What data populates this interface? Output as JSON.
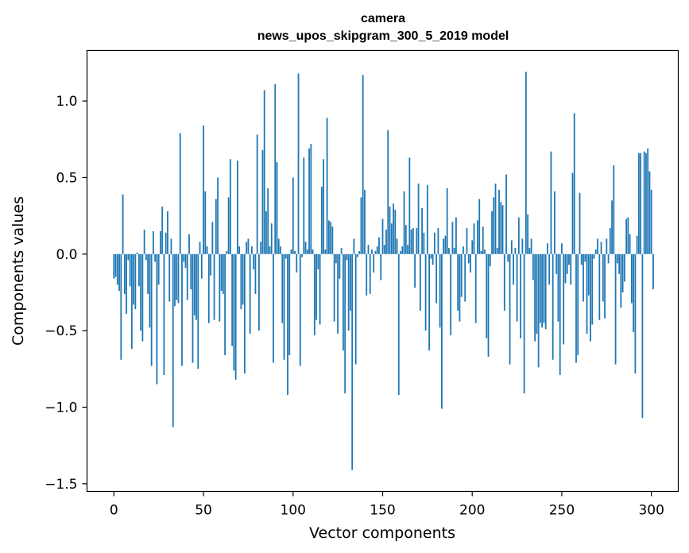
{
  "chart_data": {
    "type": "bar",
    "title": "camera",
    "subtitle": "news_upos_skipgram_300_5_2019 model",
    "xlabel": "Vector components",
    "ylabel": "Components values",
    "xlim": [
      -15,
      315
    ],
    "ylim": [
      -1.55,
      1.33
    ],
    "xticks": [
      0,
      50,
      100,
      150,
      200,
      250,
      300
    ],
    "yticks": [
      -1.5,
      -1.0,
      -0.5,
      0.0,
      0.5,
      1.0
    ],
    "ytick_labels": [
      "−1.5",
      "−1.0",
      "−0.5",
      "0.0",
      "0.5",
      "1.0"
    ],
    "bar_color": "#1f77b4",
    "grid": false,
    "legend": "none",
    "values": [
      -0.16,
      -0.15,
      -0.2,
      -0.24,
      -0.69,
      0.39,
      -0.26,
      -0.39,
      -0.04,
      -0.21,
      -0.62,
      -0.33,
      -0.36,
      0.01,
      -0.21,
      -0.5,
      -0.57,
      0.16,
      -0.04,
      -0.26,
      -0.48,
      -0.73,
      0.15,
      -0.05,
      -0.85,
      -0.2,
      0.15,
      0.31,
      -0.79,
      0.14,
      0.28,
      -0.31,
      0.1,
      -1.13,
      -0.34,
      -0.3,
      -0.32,
      0.79,
      -0.73,
      -0.05,
      -0.09,
      -0.3,
      0.13,
      -0.23,
      -0.71,
      -0.4,
      -0.43,
      -0.75,
      0.08,
      -0.16,
      0.84,
      0.41,
      0.05,
      -0.45,
      -0.14,
      0.21,
      -0.43,
      0.36,
      0.5,
      -0.44,
      -0.24,
      -0.26,
      -0.66,
      0.02,
      0.37,
      0.62,
      -0.6,
      -0.76,
      -0.82,
      0.61,
      0.05,
      -0.36,
      -0.33,
      -0.78,
      0.08,
      0.1,
      -0.52,
      0.05,
      -0.1,
      -0.26,
      0.78,
      -0.5,
      0.08,
      0.68,
      1.07,
      0.28,
      0.43,
      0.05,
      0.2,
      -0.71,
      1.11,
      0.6,
      0.1,
      0.05,
      -0.45,
      -0.69,
      -0.03,
      -0.92,
      -0.66,
      0.03,
      0.5,
      0.02,
      -0.12,
      1.18,
      -0.73,
      -0.02,
      0.63,
      0.08,
      0.03,
      0.69,
      0.72,
      0.03,
      -0.53,
      -0.43,
      -0.1,
      -0.46,
      0.44,
      0.62,
      0.03,
      0.89,
      0.22,
      0.21,
      0.18,
      -0.44,
      -0.06,
      -0.52,
      -0.16,
      0.04,
      -0.63,
      -0.91,
      -0.04,
      -0.5,
      -0.37,
      -1.41,
      0.1,
      -0.72,
      -0.02,
      0.02,
      0.37,
      1.17,
      0.42,
      -0.27,
      0.06,
      -0.26,
      0.03,
      -0.12,
      0.02,
      0.05,
      0.11,
      -0.17,
      0.23,
      0.06,
      0.16,
      0.81,
      0.31,
      0.2,
      0.33,
      0.29,
      0.1,
      -0.92,
      0.02,
      0.05,
      0.41,
      0.19,
      0.06,
      0.63,
      0.16,
      0.17,
      -0.22,
      0.17,
      0.46,
      -0.37,
      0.3,
      0.14,
      -0.5,
      0.45,
      -0.63,
      -0.03,
      -0.07,
      0.14,
      -0.32,
      0.17,
      -0.48,
      -1.01,
      0.1,
      0.12,
      0.43,
      0.04,
      -0.53,
      0.21,
      0.04,
      0.24,
      -0.37,
      -0.44,
      -0.28,
      0.05,
      -0.31,
      0.17,
      -0.06,
      -0.12,
      0.09,
      0.2,
      -0.45,
      0.22,
      0.36,
      0.02,
      0.18,
      0.03,
      -0.55,
      -0.67,
      -0.08,
      0.28,
      0.37,
      0.46,
      0.04,
      0.42,
      0.34,
      0.32,
      -0.37,
      0.52,
      -0.05,
      -0.72,
      0.09,
      -0.2,
      0.04,
      -0.44,
      0.24,
      -0.55,
      0.1,
      -0.91,
      1.19,
      0.26,
      0.04,
      0.1,
      -0.17,
      -0.57,
      -0.52,
      -0.74,
      -0.45,
      -0.48,
      -0.45,
      -0.49,
      0.07,
      -0.2,
      0.67,
      -0.69,
      0.41,
      -0.13,
      -0.44,
      -0.79,
      0.07,
      -0.59,
      -0.19,
      -0.13,
      -0.07,
      -0.2,
      0.53,
      0.92,
      -0.71,
      -0.66,
      0.4,
      -0.07,
      -0.31,
      -0.05,
      -0.52,
      -0.27,
      -0.57,
      -0.46,
      -0.03,
      0.03,
      0.1,
      -0.43,
      0.08,
      -0.31,
      -0.42,
      0.1,
      -0.06,
      0.17,
      0.35,
      0.58,
      -0.72,
      -0.06,
      -0.13,
      -0.35,
      -0.25,
      -0.18,
      0.23,
      0.24,
      0.13,
      -0.32,
      -0.51,
      -0.78,
      0.12,
      0.66,
      0.66,
      -1.07,
      0.67,
      0.66,
      0.69,
      0.54,
      0.42,
      -0.23
    ]
  }
}
